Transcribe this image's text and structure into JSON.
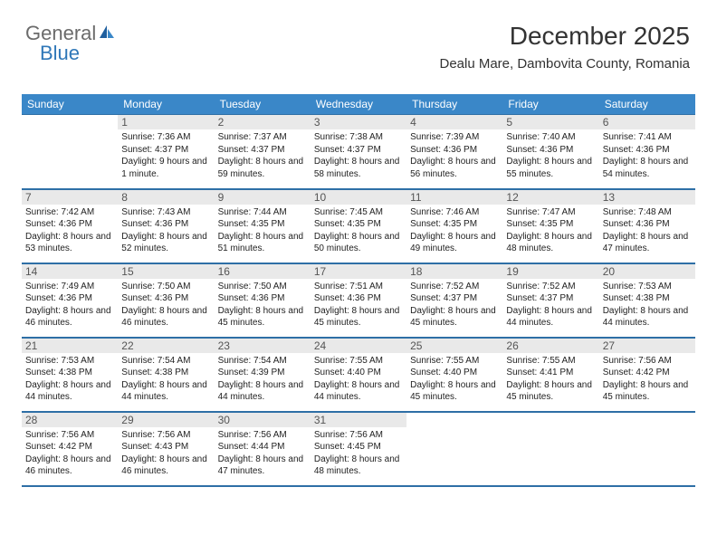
{
  "brand": {
    "part1": "General",
    "part2": "Blue"
  },
  "header": {
    "month_title": "December 2025",
    "location": "Dealu Mare, Dambovita County, Romania"
  },
  "style": {
    "header_bg": "#3a87c8",
    "header_border": "#2e6fa6",
    "daynum_bg": "#e9e9e9",
    "text_color": "#222222",
    "page_bg": "#ffffff",
    "logo_general_color": "#6b6b6b",
    "logo_blue_color": "#2f77b8",
    "title_font_size_pt": 21,
    "location_font_size_pt": 11,
    "dayheader_font_size_pt": 9,
    "cell_font_size_pt": 7.5
  },
  "day_headers": [
    "Sunday",
    "Monday",
    "Tuesday",
    "Wednesday",
    "Thursday",
    "Friday",
    "Saturday"
  ],
  "weeks": [
    [
      null,
      {
        "n": "1",
        "sunrise": "7:36 AM",
        "sunset": "4:37 PM",
        "daylight": "9 hours and 1 minute."
      },
      {
        "n": "2",
        "sunrise": "7:37 AM",
        "sunset": "4:37 PM",
        "daylight": "8 hours and 59 minutes."
      },
      {
        "n": "3",
        "sunrise": "7:38 AM",
        "sunset": "4:37 PM",
        "daylight": "8 hours and 58 minutes."
      },
      {
        "n": "4",
        "sunrise": "7:39 AM",
        "sunset": "4:36 PM",
        "daylight": "8 hours and 56 minutes."
      },
      {
        "n": "5",
        "sunrise": "7:40 AM",
        "sunset": "4:36 PM",
        "daylight": "8 hours and 55 minutes."
      },
      {
        "n": "6",
        "sunrise": "7:41 AM",
        "sunset": "4:36 PM",
        "daylight": "8 hours and 54 minutes."
      }
    ],
    [
      {
        "n": "7",
        "sunrise": "7:42 AM",
        "sunset": "4:36 PM",
        "daylight": "8 hours and 53 minutes."
      },
      {
        "n": "8",
        "sunrise": "7:43 AM",
        "sunset": "4:36 PM",
        "daylight": "8 hours and 52 minutes."
      },
      {
        "n": "9",
        "sunrise": "7:44 AM",
        "sunset": "4:35 PM",
        "daylight": "8 hours and 51 minutes."
      },
      {
        "n": "10",
        "sunrise": "7:45 AM",
        "sunset": "4:35 PM",
        "daylight": "8 hours and 50 minutes."
      },
      {
        "n": "11",
        "sunrise": "7:46 AM",
        "sunset": "4:35 PM",
        "daylight": "8 hours and 49 minutes."
      },
      {
        "n": "12",
        "sunrise": "7:47 AM",
        "sunset": "4:35 PM",
        "daylight": "8 hours and 48 minutes."
      },
      {
        "n": "13",
        "sunrise": "7:48 AM",
        "sunset": "4:36 PM",
        "daylight": "8 hours and 47 minutes."
      }
    ],
    [
      {
        "n": "14",
        "sunrise": "7:49 AM",
        "sunset": "4:36 PM",
        "daylight": "8 hours and 46 minutes."
      },
      {
        "n": "15",
        "sunrise": "7:50 AM",
        "sunset": "4:36 PM",
        "daylight": "8 hours and 46 minutes."
      },
      {
        "n": "16",
        "sunrise": "7:50 AM",
        "sunset": "4:36 PM",
        "daylight": "8 hours and 45 minutes."
      },
      {
        "n": "17",
        "sunrise": "7:51 AM",
        "sunset": "4:36 PM",
        "daylight": "8 hours and 45 minutes."
      },
      {
        "n": "18",
        "sunrise": "7:52 AM",
        "sunset": "4:37 PM",
        "daylight": "8 hours and 45 minutes."
      },
      {
        "n": "19",
        "sunrise": "7:52 AM",
        "sunset": "4:37 PM",
        "daylight": "8 hours and 44 minutes."
      },
      {
        "n": "20",
        "sunrise": "7:53 AM",
        "sunset": "4:38 PM",
        "daylight": "8 hours and 44 minutes."
      }
    ],
    [
      {
        "n": "21",
        "sunrise": "7:53 AM",
        "sunset": "4:38 PM",
        "daylight": "8 hours and 44 minutes."
      },
      {
        "n": "22",
        "sunrise": "7:54 AM",
        "sunset": "4:38 PM",
        "daylight": "8 hours and 44 minutes."
      },
      {
        "n": "23",
        "sunrise": "7:54 AM",
        "sunset": "4:39 PM",
        "daylight": "8 hours and 44 minutes."
      },
      {
        "n": "24",
        "sunrise": "7:55 AM",
        "sunset": "4:40 PM",
        "daylight": "8 hours and 44 minutes."
      },
      {
        "n": "25",
        "sunrise": "7:55 AM",
        "sunset": "4:40 PM",
        "daylight": "8 hours and 45 minutes."
      },
      {
        "n": "26",
        "sunrise": "7:55 AM",
        "sunset": "4:41 PM",
        "daylight": "8 hours and 45 minutes."
      },
      {
        "n": "27",
        "sunrise": "7:56 AM",
        "sunset": "4:42 PM",
        "daylight": "8 hours and 45 minutes."
      }
    ],
    [
      {
        "n": "28",
        "sunrise": "7:56 AM",
        "sunset": "4:42 PM",
        "daylight": "8 hours and 46 minutes."
      },
      {
        "n": "29",
        "sunrise": "7:56 AM",
        "sunset": "4:43 PM",
        "daylight": "8 hours and 46 minutes."
      },
      {
        "n": "30",
        "sunrise": "7:56 AM",
        "sunset": "4:44 PM",
        "daylight": "8 hours and 47 minutes."
      },
      {
        "n": "31",
        "sunrise": "7:56 AM",
        "sunset": "4:45 PM",
        "daylight": "8 hours and 48 minutes."
      },
      null,
      null,
      null
    ]
  ],
  "labels": {
    "sunrise": "Sunrise:",
    "sunset": "Sunset:",
    "daylight": "Daylight:"
  }
}
